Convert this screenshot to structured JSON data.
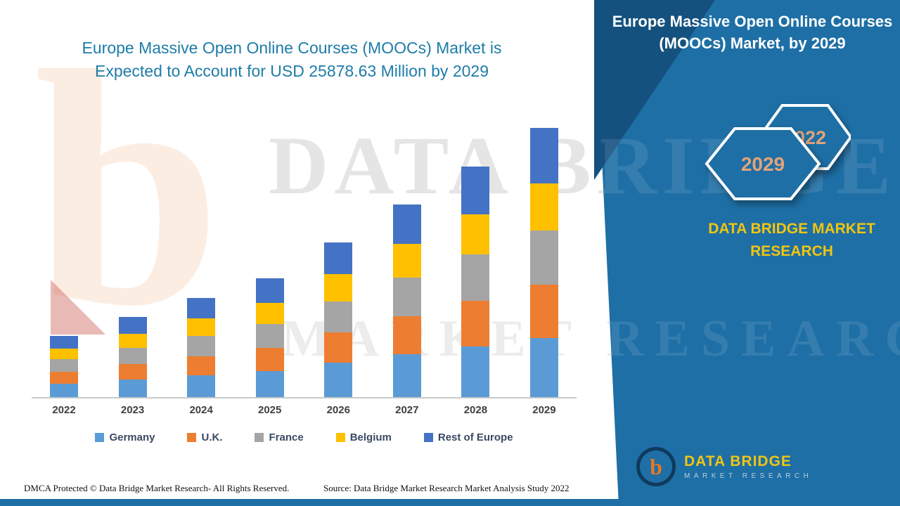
{
  "page": {
    "left_title": "Europe Massive Open Online Courses (MOOCs) Market is Expected to Account for USD 25878.63 Million by 2029"
  },
  "right_panel": {
    "title": "Europe Massive Open Online Courses (MOOCs) Market, by 2029",
    "hexagon_back_year": "2022",
    "hexagon_front_year": "2029",
    "brand_text": "DATA BRIDGE MARKET RESEARCH",
    "logo_letter": "b",
    "logo_title": "DATA BRIDGE",
    "logo_subtitle": "MARKET RESEARCH"
  },
  "watermark": {
    "line1": "DATA BRIDGE",
    "line2": "MARKET RESEARCH",
    "letter": "b"
  },
  "footer": {
    "dmca_text": "DMCA Protected © Data Bridge Market Research- All Rights Reserved.",
    "source_text": "Source: Data Bridge Market Research Market Analysis Study 2022"
  },
  "colors": {
    "panel_blue": "#1E6FA5",
    "panel_dark_blue": "#15517E",
    "title_teal": "#1E7CA8",
    "brand_gold": "#F2C50F",
    "hexagon_year_text": "#E2A379"
  },
  "chart_data": {
    "type": "bar",
    "stacked": true,
    "title": "Europe Massive Open Online Courses (MOOCs) Market is Expected to Account for USD 25878.63 Million by 2029",
    "unit": "USD Million",
    "categories": [
      "2022",
      "2023",
      "2024",
      "2025",
      "2026",
      "2027",
      "2028",
      "2029"
    ],
    "series": [
      {
        "name": "Germany",
        "color": "#5B9BD5",
        "values": [
          1300,
          1700,
          2100,
          2500,
          3300,
          4100,
          4900,
          5700
        ]
      },
      {
        "name": "U.K.",
        "color": "#ED7D31",
        "values": [
          1150,
          1500,
          1850,
          2250,
          2900,
          3650,
          4350,
          5100
        ]
      },
      {
        "name": "France",
        "color": "#A5A5A5",
        "values": [
          1200,
          1550,
          1950,
          2300,
          3000,
          3750,
          4450,
          5200
        ]
      },
      {
        "name": "Belgium",
        "color": "#FFC000",
        "values": [
          1000,
          1350,
          1650,
          2000,
          2600,
          3250,
          3900,
          4550
        ]
      },
      {
        "name": "Rest of Europe",
        "color": "#4472C4",
        "values": [
          1200,
          1600,
          2000,
          2350,
          3100,
          3800,
          4550,
          5328.63
        ]
      }
    ],
    "totals": [
      5850,
      7700,
      9550,
      11400,
      14900,
      18550,
      22150,
      25878.63
    ],
    "ylim": [
      0,
      26000
    ],
    "grid": false,
    "legend_position": "bottom",
    "xlabel": "",
    "ylabel": ""
  }
}
